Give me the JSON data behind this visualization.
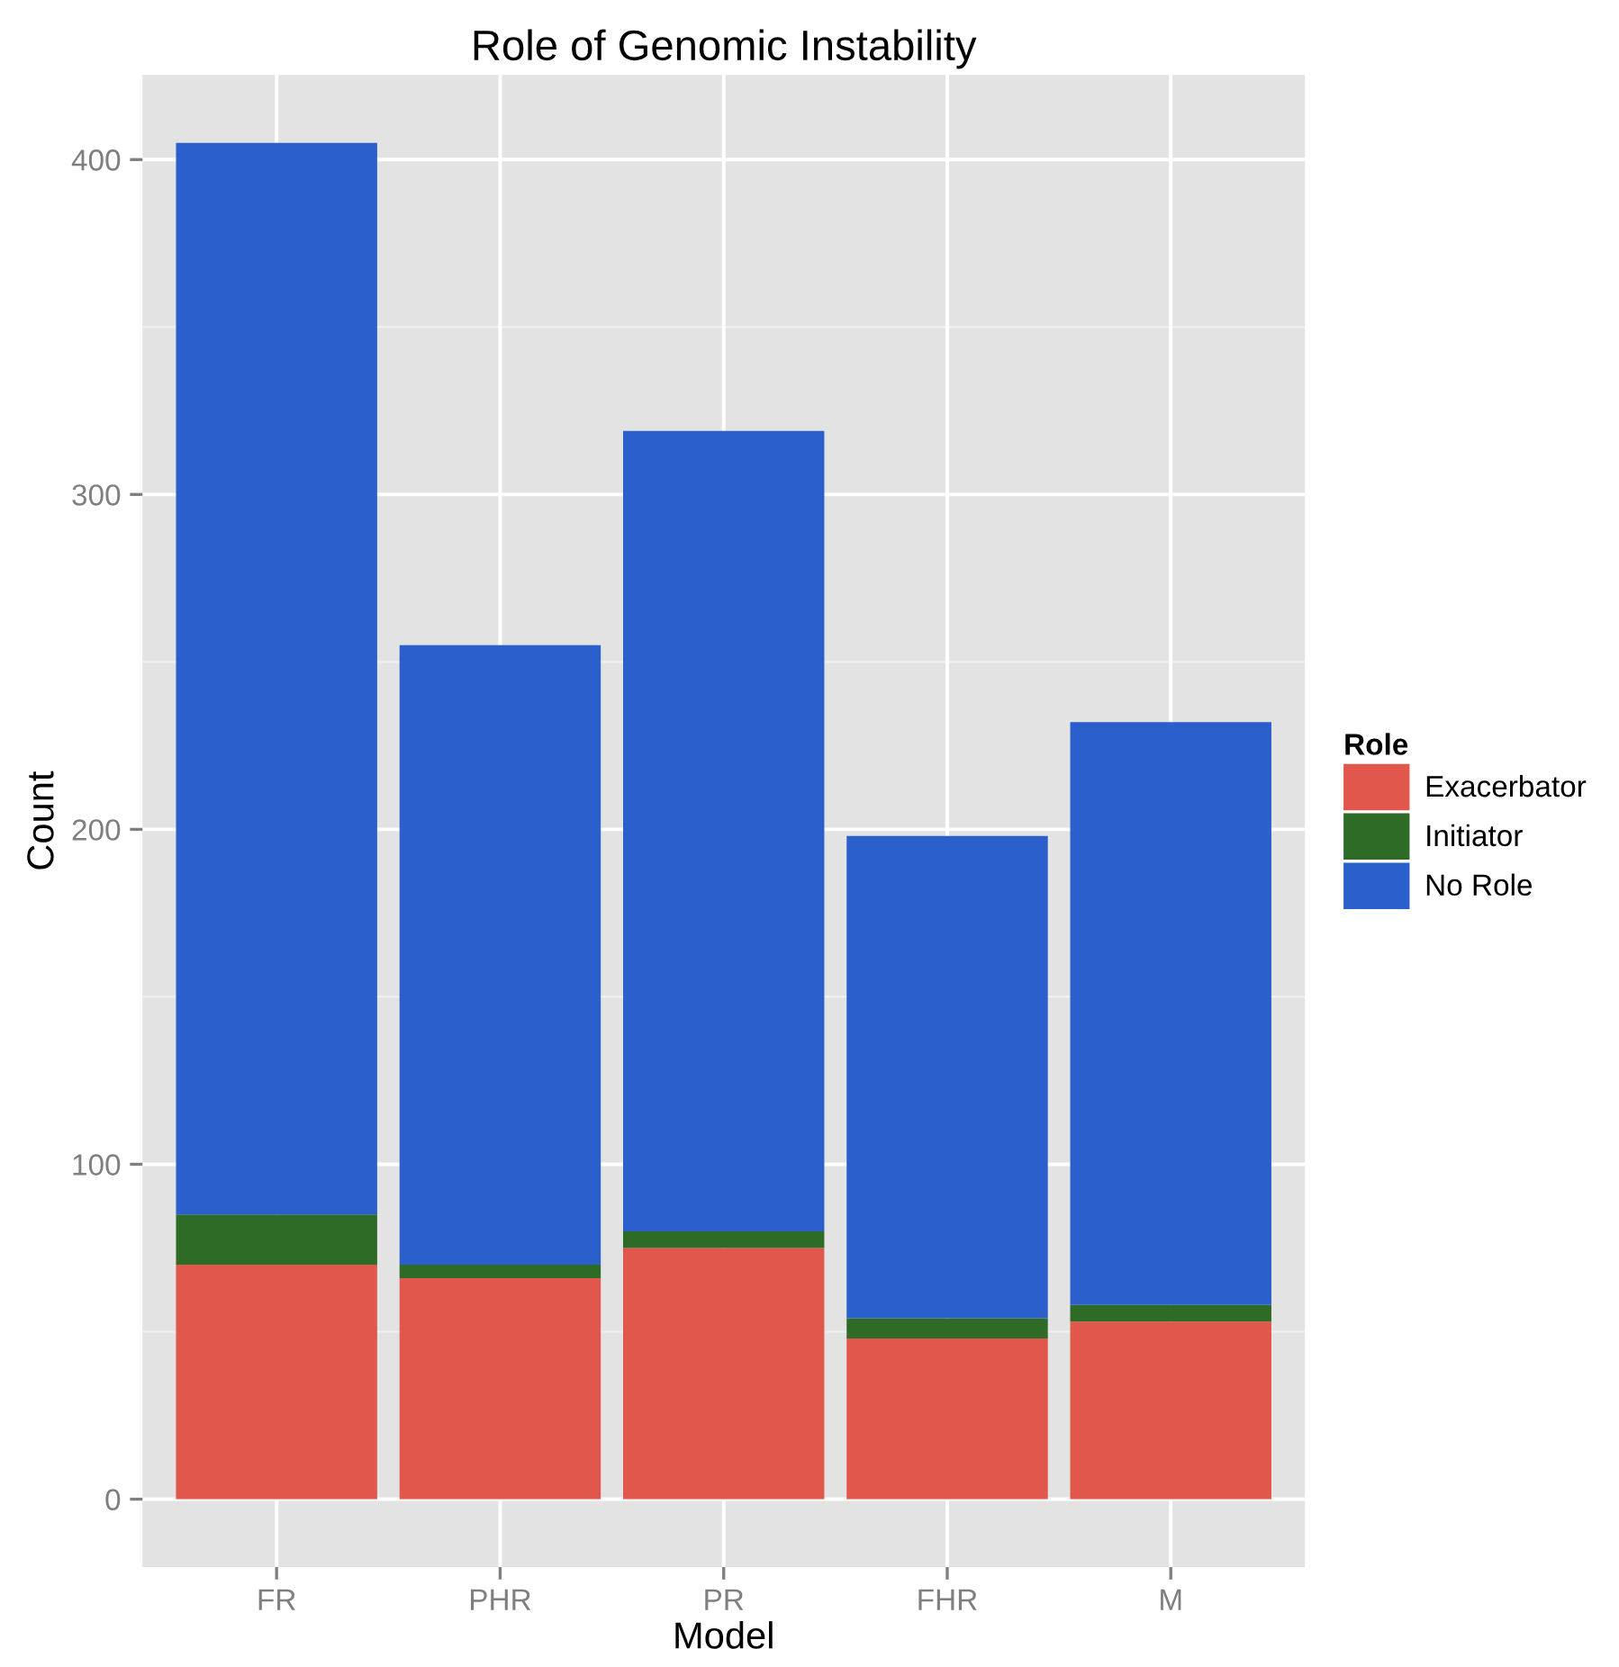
{
  "chart_data": {
    "type": "bar",
    "title": "Role of Genomic Instability",
    "xlabel": "Model",
    "ylabel": "Count",
    "legend_title": "Role",
    "categories": [
      "FR",
      "PHR",
      "PR",
      "FHR",
      "M"
    ],
    "stacked": true,
    "series": [
      {
        "name": "Exacerbator",
        "color": "#e2574b",
        "values": [
          70,
          66,
          75,
          48,
          53
        ]
      },
      {
        "name": "Initiator",
        "color": "#2d6b27",
        "values": [
          15,
          4,
          5,
          6,
          5
        ]
      },
      {
        "name": "No Role",
        "color": "#2b5fcb",
        "values": [
          320,
          185,
          239,
          144,
          174
        ]
      }
    ],
    "ylim": [
      -20.25,
      425.25
    ],
    "yticks": [
      0,
      100,
      200,
      300,
      400
    ],
    "grid": true,
    "legend": "right"
  }
}
